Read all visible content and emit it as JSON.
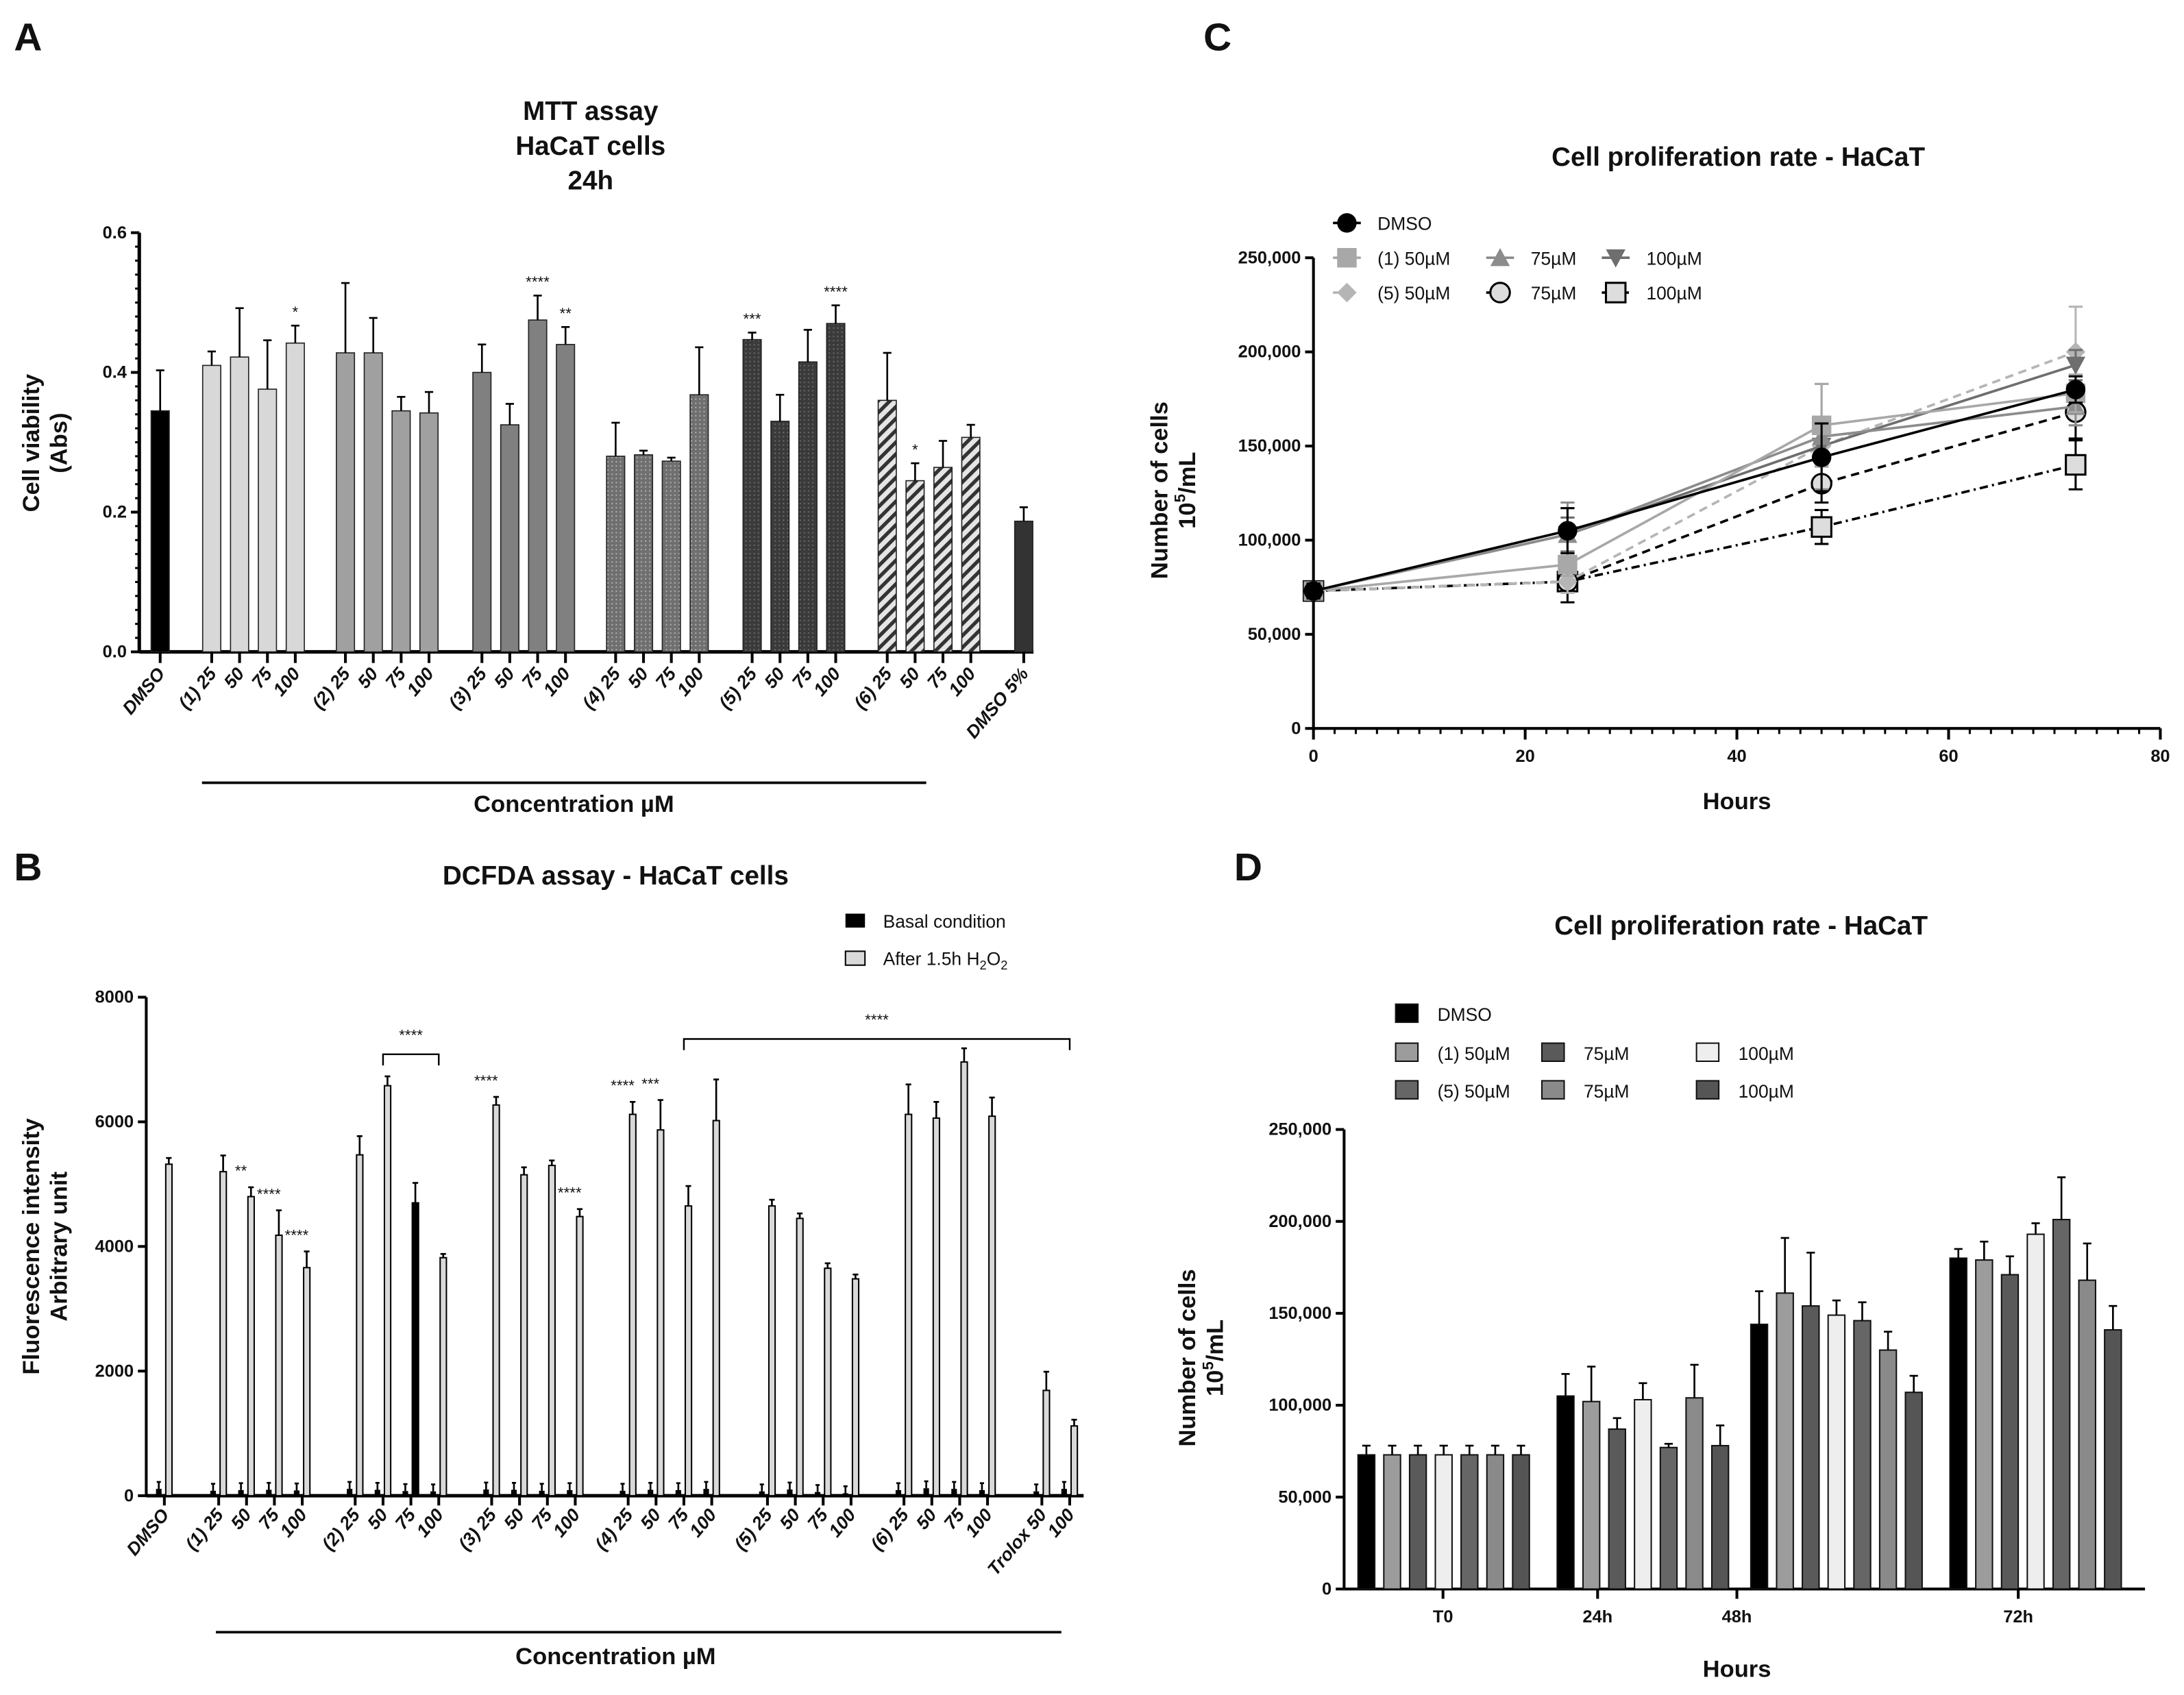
{
  "panels": {
    "a": "A",
    "b": "B",
    "c": "C",
    "d": "D"
  },
  "chart_data": [
    {
      "id": "A",
      "type": "bar",
      "title": [
        "MTT assay",
        "HaCaT cells",
        "24h"
      ],
      "ylabel": [
        "Cell viability",
        "(Abs)"
      ],
      "xlabel": "Concentration µM",
      "ylim": [
        0,
        0.6
      ],
      "yticks": [
        "0.0",
        "0.2",
        "0.4",
        "0.6"
      ],
      "ytick_values": [
        0,
        0.2,
        0.4,
        0.6
      ],
      "categories": [
        "DMSO",
        "(1) 25",
        "50",
        "75",
        "100",
        "(2) 25",
        "50",
        "75",
        "100",
        "(3) 25",
        "50",
        "75",
        "100",
        "(4) 25",
        "50",
        "75",
        "100",
        "(5) 25",
        "50",
        "75",
        "100",
        "(6) 25",
        "50",
        "75",
        "100",
        "DMSO 5%"
      ],
      "groups": [
        0,
        1,
        1,
        1,
        1,
        2,
        2,
        2,
        2,
        3,
        3,
        3,
        3,
        4,
        4,
        4,
        4,
        5,
        5,
        5,
        5,
        6,
        6,
        6,
        6,
        7
      ],
      "values": [
        0.345,
        0.41,
        0.422,
        0.376,
        0.442,
        0.428,
        0.428,
        0.345,
        0.342,
        0.4,
        0.325,
        0.475,
        0.44,
        0.28,
        0.282,
        0.273,
        0.368,
        0.447,
        0.33,
        0.415,
        0.47,
        0.36,
        0.245,
        0.264,
        0.307,
        0.187
      ],
      "errors": [
        0.058,
        0.02,
        0.07,
        0.07,
        0.025,
        0.1,
        0.05,
        0.02,
        0.03,
        0.04,
        0.03,
        0.035,
        0.025,
        0.048,
        0.006,
        0.005,
        0.068,
        0.01,
        0.038,
        0.046,
        0.026,
        0.068,
        0.025,
        0.038,
        0.018,
        0.02
      ],
      "significance": [
        "",
        "",
        "",
        "",
        "*",
        "",
        "",
        "",
        "",
        "",
        "",
        "****",
        "**",
        "",
        "",
        "",
        "",
        "***",
        "",
        "",
        "****",
        "",
        "*",
        "",
        "",
        ""
      ]
    },
    {
      "id": "B",
      "type": "bar",
      "title": "DCFDA assay - HaCaT cells",
      "ylabel": [
        "Fluorescence intensity",
        "Arbitrary unit"
      ],
      "xlabel": "Concentration µM",
      "ylim": [
        0,
        8000
      ],
      "yticks": [
        "0",
        "2000",
        "4000",
        "6000",
        "8000"
      ],
      "ytick_values": [
        0,
        2000,
        4000,
        6000,
        8000
      ],
      "legend": [
        {
          "name": "Basal condition",
          "color": "#000000"
        },
        {
          "name": "After 1.5h H",
          "sub": "2",
          "tail": "O",
          "sub2": "2",
          "color": "#d9d9d9"
        }
      ],
      "categories": [
        "DMSO",
        "(1) 25",
        "50",
        "75",
        "100",
        "(2) 25",
        "50",
        "75",
        "100",
        "(3) 25",
        "50",
        "75",
        "100",
        "(4) 25",
        "50",
        "75",
        "100",
        "(5) 25",
        "50",
        "75",
        "100",
        "(6) 25",
        "50",
        "75",
        "100",
        "Trolox 50",
        "100"
      ],
      "groups": [
        0,
        1,
        1,
        1,
        1,
        2,
        2,
        2,
        2,
        3,
        3,
        3,
        3,
        4,
        4,
        4,
        4,
        5,
        5,
        5,
        5,
        6,
        6,
        6,
        6,
        7,
        7
      ],
      "series": [
        {
          "name": "Basal condition",
          "values": [
            110,
            80,
            90,
            95,
            85,
            110,
            95,
            75,
            70,
            100,
            95,
            80,
            90,
            80,
            95,
            90,
            110,
            70,
            100,
            60,
            40,
            90,
            120,
            110,
            90,
            70,
            110
          ]
        },
        {
          "name": "After 1.5h H2O2",
          "values": [
            5320,
            5200,
            4800,
            4180,
            3660,
            5470,
            6580,
            4700,
            3820,
            6270,
            5150,
            5300,
            4480,
            6120,
            5870,
            4650,
            6020,
            4650,
            4450,
            3650,
            3480,
            6120,
            6060,
            6960,
            6090,
            1690,
            1120
          ],
          "errors": [
            100,
            260,
            150,
            400,
            260,
            300,
            150,
            320,
            60,
            130,
            120,
            80,
            120,
            200,
            480,
            320,
            660,
            100,
            80,
            80,
            70,
            480,
            260,
            220,
            300,
            300,
            100
          ]
        }
      ],
      "significance": [
        "",
        "",
        "**",
        "****",
        "****",
        "",
        "",
        "",
        "",
        "****",
        "",
        "",
        "****",
        "****",
        "***",
        "",
        "",
        "",
        "",
        "",
        "",
        "",
        "",
        "",
        "",
        "",
        ""
      ],
      "brackets": [
        {
          "from": "(2) 50",
          "to": "(2) 100",
          "label": "****"
        },
        {
          "from": "(4) 75",
          "to": "Trolox 100",
          "label": "****"
        }
      ]
    },
    {
      "id": "C",
      "type": "line",
      "title": "Cell proliferation rate - HaCaT",
      "ylabel": [
        "Number of cells",
        "10",
        "5",
        "/mL"
      ],
      "xlabel": "Hours",
      "xlim": [
        0,
        80
      ],
      "ylim": [
        0,
        250000
      ],
      "xticks": [
        "0",
        "20",
        "40",
        "60",
        "80"
      ],
      "xtick_values": [
        0,
        20,
        40,
        60,
        80
      ],
      "yticks": [
        "0",
        "50,000",
        "100,000",
        "150,000",
        "200,000",
        "250,000"
      ],
      "ytick_values": [
        0,
        50000,
        100000,
        150000,
        200000,
        250000
      ],
      "x": [
        0,
        24,
        48,
        72
      ],
      "series": [
        {
          "name": "DMSO",
          "values": [
            73000,
            105000,
            144000,
            180000
          ],
          "errors": [
            4000,
            12000,
            18000,
            7000
          ],
          "color": "#000000",
          "marker": "circle",
          "dash": "solid"
        },
        {
          "name": "(1) 50µM",
          "values": [
            73000,
            87000,
            161000,
            178000
          ],
          "errors": [
            4000,
            6000,
            22000,
            10000
          ],
          "color": "#a8a8a8",
          "marker": "square",
          "dash": "solid"
        },
        {
          "name": "75µM",
          "values": [
            73000,
            103000,
            155000,
            171000
          ],
          "errors": [
            4000,
            17000,
            28000,
            10000
          ],
          "color": "#8c8c8c",
          "marker": "triangle-up",
          "dash": "solid"
        },
        {
          "name": "100µM",
          "values": [
            73000,
            103000,
            150000,
            193000
          ],
          "errors": [
            4000,
            9000,
            8000,
            8000
          ],
          "color": "#6e6e6e",
          "marker": "triangle-down",
          "dash": "solid"
        },
        {
          "name": "(5) 50µM",
          "values": [
            73000,
            78000,
            150000,
            200000
          ],
          "errors": [
            4000,
            6000,
            10000,
            24000
          ],
          "color": "#b5b5b5",
          "marker": "diamond",
          "dash": "dashed"
        },
        {
          "name": "75µM",
          "values": [
            73000,
            78000,
            130000,
            168000
          ],
          "errors": [
            4000,
            5000,
            10000,
            14000
          ],
          "color": "#000000",
          "marker": "circle-open",
          "dash": "dashed"
        },
        {
          "name": "100µM",
          "values": [
            73000,
            78000,
            107000,
            140000
          ],
          "errors": [
            4000,
            11000,
            9000,
            13000
          ],
          "color": "#000000",
          "marker": "square-open",
          "dash": "dashdot"
        }
      ]
    },
    {
      "id": "D",
      "type": "bar",
      "title": "Cell proliferation rate - HaCaT",
      "ylabel": [
        "Number of cells",
        "10",
        "5",
        "/mL"
      ],
      "xlabel": "Hours",
      "ylim": [
        0,
        250000
      ],
      "yticks": [
        "0",
        "50,000",
        "100,000",
        "150,000",
        "200,000",
        "250,000"
      ],
      "ytick_values": [
        0,
        50000,
        100000,
        150000,
        200000,
        250000
      ],
      "categories": [
        "T0",
        "24h",
        "48h",
        "72h"
      ],
      "series": [
        {
          "name": "DMSO",
          "color": "#000000",
          "values": [
            73000,
            105000,
            144000,
            180000
          ],
          "errors": [
            5000,
            12000,
            18000,
            5000
          ]
        },
        {
          "name": "(1) 50µM",
          "color": "#9c9c9c",
          "values": [
            73000,
            102000,
            161000,
            179000
          ],
          "errors": [
            5000,
            19000,
            30000,
            10000
          ]
        },
        {
          "name": "75µM",
          "color": "#5a5a5a",
          "values": [
            73000,
            87000,
            154000,
            171000
          ],
          "errors": [
            5000,
            6000,
            29000,
            10000
          ]
        },
        {
          "name": "100µM",
          "color": "#eeeeee",
          "values": [
            73000,
            103000,
            149000,
            193000
          ],
          "errors": [
            5000,
            9000,
            8000,
            6000
          ]
        },
        {
          "name": "(5) 50µM",
          "color": "#666666",
          "values": [
            73000,
            77000,
            146000,
            201000
          ],
          "errors": [
            5000,
            2000,
            10000,
            23000
          ]
        },
        {
          "name": "75µM",
          "color": "#8a8a8a",
          "values": [
            73000,
            104000,
            130000,
            168000
          ],
          "errors": [
            5000,
            18000,
            10000,
            20000
          ]
        },
        {
          "name": "100µM",
          "color": "#555555",
          "values": [
            73000,
            78000,
            107000,
            141000
          ],
          "errors": [
            5000,
            11000,
            9000,
            13000
          ]
        }
      ]
    }
  ]
}
